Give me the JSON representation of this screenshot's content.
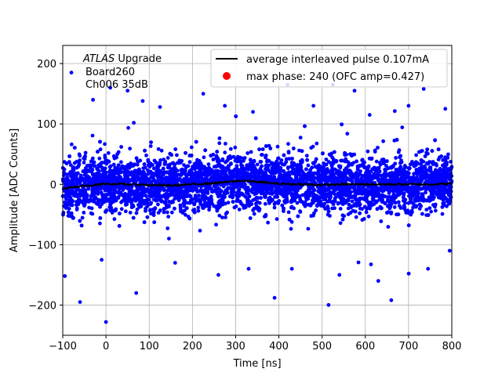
{
  "chart_data": {
    "type": "scatter",
    "title": "",
    "xlabel": "Time [ns]",
    "ylabel": "Amplitude [ADC Counts]",
    "xlim": [
      -100,
      800
    ],
    "ylim": [
      -250,
      230
    ],
    "x_ticks": [
      -100,
      0,
      100,
      200,
      300,
      400,
      500,
      600,
      700,
      800
    ],
    "y_ticks": [
      -200,
      -100,
      0,
      100,
      200
    ],
    "grid": true,
    "legend_position": "top-right",
    "annotation": {
      "experiment": "ATLAS",
      "experiment_suffix": " Upgrade",
      "line2": "Board260",
      "line3": "Ch006 35dB"
    },
    "series": [
      {
        "name": "average interleaved pulse 0.107mA",
        "kind": "line",
        "color": "#000000",
        "x": [
          -100,
          -50,
          0,
          50,
          100,
          150,
          200,
          250,
          300,
          320,
          350,
          400,
          450,
          500,
          550,
          600,
          650,
          700,
          750,
          800
        ],
        "y": [
          -7,
          -3,
          1,
          0,
          -1,
          -2,
          0,
          2,
          5,
          6,
          4,
          1,
          0,
          -1,
          0,
          0,
          0,
          0,
          0,
          1
        ]
      },
      {
        "name": "max phase: 240 (OFC amp=0.427)",
        "kind": "scatter",
        "color": "#0000ff",
        "legend_color": "#ff0000",
        "noise_core_sigma": 22,
        "outliers": [
          {
            "x": -95,
            "y": -152
          },
          {
            "x": -80,
            "y": 185
          },
          {
            "x": -60,
            "y": -195
          },
          {
            "x": -30,
            "y": 140
          },
          {
            "x": -10,
            "y": -125
          },
          {
            "x": 0,
            "y": -228
          },
          {
            "x": 10,
            "y": 160
          },
          {
            "x": 50,
            "y": 155
          },
          {
            "x": 70,
            "y": -180
          },
          {
            "x": 85,
            "y": 138
          },
          {
            "x": 125,
            "y": 128
          },
          {
            "x": 160,
            "y": -130
          },
          {
            "x": 225,
            "y": 150
          },
          {
            "x": 260,
            "y": -150
          },
          {
            "x": 275,
            "y": 130
          },
          {
            "x": 330,
            "y": -140
          },
          {
            "x": 390,
            "y": -188
          },
          {
            "x": 420,
            "y": 165
          },
          {
            "x": 430,
            "y": -140
          },
          {
            "x": 480,
            "y": 130
          },
          {
            "x": 525,
            "y": 165
          },
          {
            "x": 540,
            "y": -150
          },
          {
            "x": 575,
            "y": 155
          },
          {
            "x": 630,
            "y": -160
          },
          {
            "x": 660,
            "y": -192
          },
          {
            "x": 700,
            "y": 130
          },
          {
            "x": 735,
            "y": 158
          },
          {
            "x": 745,
            "y": -140
          },
          {
            "x": 785,
            "y": 125
          },
          {
            "x": 795,
            "y": -110
          },
          {
            "x": 610,
            "y": 115
          },
          {
            "x": 340,
            "y": 120
          }
        ]
      }
    ]
  }
}
